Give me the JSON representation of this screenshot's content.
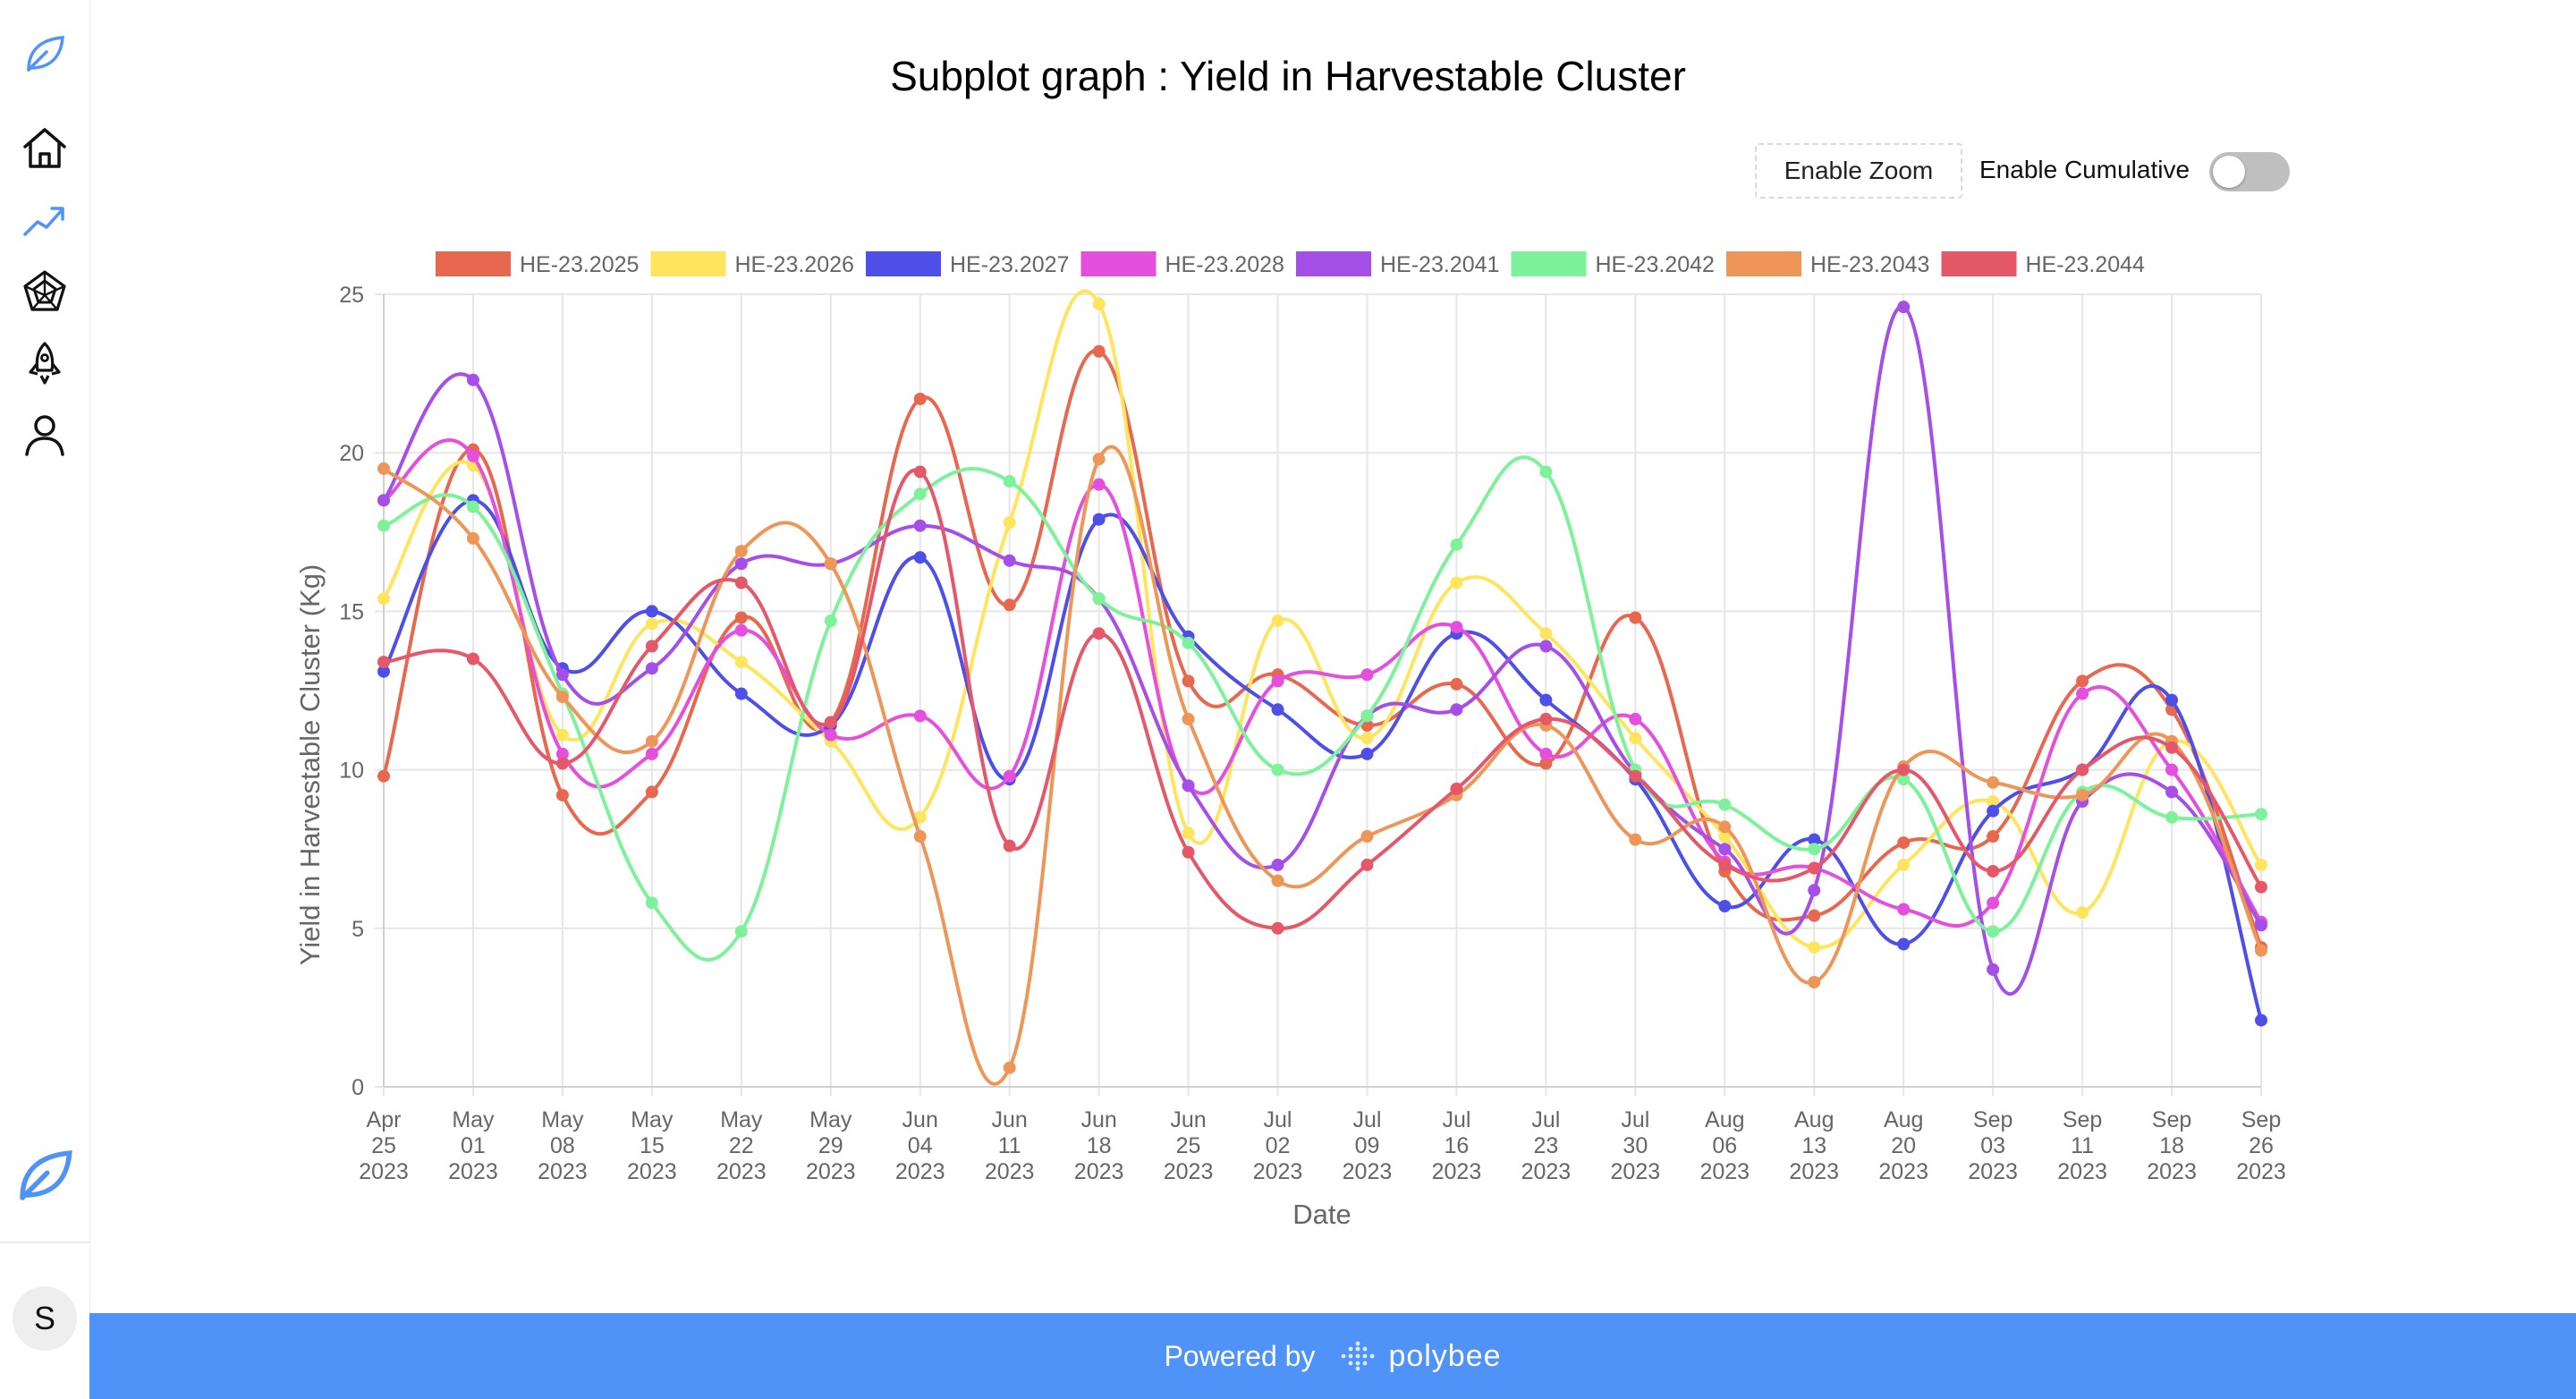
{
  "page": {
    "title": "Subplot graph : Yield in Harvestable Cluster",
    "zoom_button": "Enable Zoom",
    "cumulative_label": "Enable Cumulative",
    "cumulative_enabled": false
  },
  "sidebar": {
    "icons": [
      "leaf-logo-icon",
      "home-icon",
      "trend-chart-icon",
      "radar-chart-icon",
      "rocket-icon",
      "user-icon",
      "leaf-logo-icon"
    ],
    "avatar_initial": "S"
  },
  "footer": {
    "powered_by": "Powered by",
    "brand": "polybee",
    "background_color": "#4f93f8"
  },
  "chart_data": {
    "type": "line",
    "title": "Subplot graph : Yield in Harvestable Cluster",
    "xlabel": "Date",
    "ylabel": "Yield in Harvestable Cluster (Kg)",
    "ylim": [
      0,
      25
    ],
    "yticks": [
      0,
      5,
      10,
      15,
      20,
      25
    ],
    "grid": true,
    "legend_position": "top",
    "categories": [
      [
        "Apr",
        "25",
        "2023"
      ],
      [
        "May",
        "01",
        "2023"
      ],
      [
        "May",
        "08",
        "2023"
      ],
      [
        "May",
        "15",
        "2023"
      ],
      [
        "May",
        "22",
        "2023"
      ],
      [
        "May",
        "29",
        "2023"
      ],
      [
        "Jun",
        "04",
        "2023"
      ],
      [
        "Jun",
        "11",
        "2023"
      ],
      [
        "Jun",
        "18",
        "2023"
      ],
      [
        "Jun",
        "25",
        "2023"
      ],
      [
        "Jul",
        "02",
        "2023"
      ],
      [
        "Jul",
        "09",
        "2023"
      ],
      [
        "Jul",
        "16",
        "2023"
      ],
      [
        "Jul",
        "23",
        "2023"
      ],
      [
        "Jul",
        "30",
        "2023"
      ],
      [
        "Aug",
        "06",
        "2023"
      ],
      [
        "Aug",
        "13",
        "2023"
      ],
      [
        "Aug",
        "20",
        "2023"
      ],
      [
        "Sep",
        "03",
        "2023"
      ],
      [
        "Sep",
        "11",
        "2023"
      ],
      [
        "Sep",
        "18",
        "2023"
      ],
      [
        "Sep",
        "26",
        "2023"
      ]
    ],
    "series": [
      {
        "name": "HE-23.2025",
        "color": "#e8674f",
        "values": [
          9.8,
          20.1,
          9.2,
          9.3,
          14.8,
          11.5,
          21.7,
          15.2,
          23.2,
          12.8,
          13.0,
          11.4,
          12.7,
          10.2,
          14.8,
          6.8,
          5.4,
          7.7,
          7.9,
          12.8,
          11.9,
          4.4
        ]
      },
      {
        "name": "HE-23.2026",
        "color": "#ffe45e",
        "values": [
          15.4,
          19.6,
          11.1,
          14.6,
          13.4,
          10.9,
          8.5,
          17.8,
          24.7,
          8.0,
          14.7,
          11.0,
          15.9,
          14.3,
          11.0,
          7.9,
          4.4,
          7.0,
          9.0,
          5.5,
          10.9,
          7.0
        ]
      },
      {
        "name": "HE-23.2027",
        "color": "#4d4fe8",
        "values": [
          13.1,
          18.5,
          13.2,
          15.0,
          12.4,
          11.4,
          16.7,
          9.7,
          17.9,
          14.2,
          11.9,
          10.5,
          14.3,
          12.2,
          9.7,
          5.7,
          7.8,
          4.5,
          8.7,
          10.0,
          12.2,
          2.1
        ]
      },
      {
        "name": "HE-23.2028",
        "color": "#e54fdd",
        "values": [
          18.5,
          19.9,
          10.5,
          10.5,
          14.4,
          11.1,
          11.7,
          9.8,
          19.0,
          9.5,
          12.8,
          13.0,
          14.5,
          10.5,
          11.6,
          7.1,
          6.9,
          5.6,
          5.8,
          12.4,
          10.0,
          5.2
        ]
      },
      {
        "name": "HE-23.2041",
        "color": "#a64ee8",
        "values": [
          18.5,
          22.3,
          13.0,
          13.2,
          16.5,
          16.5,
          17.7,
          16.6,
          15.4,
          9.5,
          7.0,
          11.7,
          11.9,
          13.9,
          9.9,
          7.5,
          6.2,
          24.6,
          3.7,
          9.0,
          9.3,
          5.1
        ]
      },
      {
        "name": "HE-23.2042",
        "color": "#7ef29a",
        "values": [
          17.7,
          18.3,
          12.4,
          5.8,
          4.9,
          14.7,
          18.7,
          19.1,
          15.4,
          14.0,
          10.0,
          11.7,
          17.1,
          19.4,
          10.0,
          8.9,
          7.5,
          9.7,
          4.9,
          9.3,
          8.5,
          8.6
        ]
      },
      {
        "name": "HE-23.2043",
        "color": "#ee9658",
        "values": [
          19.5,
          17.3,
          12.3,
          10.9,
          16.9,
          16.5,
          7.9,
          0.6,
          19.8,
          11.6,
          6.5,
          7.9,
          9.2,
          11.4,
          7.8,
          8.2,
          3.3,
          10.1,
          9.6,
          9.2,
          10.9,
          4.3
        ]
      },
      {
        "name": "HE-23.2044",
        "color": "#e5586a",
        "values": [
          13.4,
          13.5,
          10.2,
          13.9,
          15.9,
          11.5,
          19.4,
          7.6,
          14.3,
          7.4,
          5.0,
          7.0,
          9.4,
          11.6,
          9.8,
          7.0,
          6.9,
          10.0,
          6.8,
          10.0,
          10.7,
          6.3
        ]
      }
    ]
  }
}
